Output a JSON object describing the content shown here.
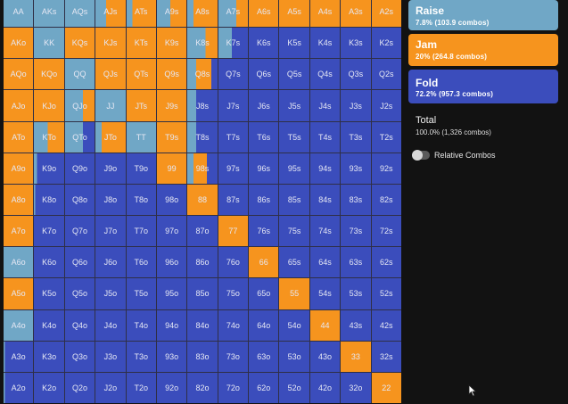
{
  "hands": [
    [
      "AA",
      "AKs",
      "AQs",
      "AJs",
      "ATs",
      "A9s",
      "A8s",
      "A7s",
      "A6s",
      "A5s",
      "A4s",
      "A3s",
      "A2s"
    ],
    [
      "AKo",
      "KK",
      "KQs",
      "KJs",
      "KTs",
      "K9s",
      "K8s",
      "K7s",
      "K6s",
      "K5s",
      "K4s",
      "K3s",
      "K2s"
    ],
    [
      "AQo",
      "KQo",
      "QQ",
      "QJs",
      "QTs",
      "Q9s",
      "Q8s",
      "Q7s",
      "Q6s",
      "Q5s",
      "Q4s",
      "Q3s",
      "Q2s"
    ],
    [
      "AJo",
      "KJo",
      "QJo",
      "JJ",
      "JTs",
      "J9s",
      "J8s",
      "J7s",
      "J6s",
      "J5s",
      "J4s",
      "J3s",
      "J2s"
    ],
    [
      "ATo",
      "KTo",
      "QTo",
      "JTo",
      "TT",
      "T9s",
      "T8s",
      "T7s",
      "T6s",
      "T5s",
      "T4s",
      "T3s",
      "T2s"
    ],
    [
      "A9o",
      "K9o",
      "Q9o",
      "J9o",
      "T9o",
      "99",
      "98s",
      "97s",
      "96s",
      "95s",
      "94s",
      "93s",
      "92s"
    ],
    [
      "A8o",
      "K8o",
      "Q8o",
      "J8o",
      "T8o",
      "98o",
      "88",
      "87s",
      "86s",
      "85s",
      "84s",
      "83s",
      "82s"
    ],
    [
      "A7o",
      "K7o",
      "Q7o",
      "J7o",
      "T7o",
      "97o",
      "87o",
      "77",
      "76s",
      "75s",
      "74s",
      "73s",
      "72s"
    ],
    [
      "A6o",
      "K6o",
      "Q6o",
      "J6o",
      "T6o",
      "96o",
      "86o",
      "76o",
      "66",
      "65s",
      "64s",
      "63s",
      "62s"
    ],
    [
      "A5o",
      "K5o",
      "Q5o",
      "J5o",
      "T5o",
      "95o",
      "85o",
      "75o",
      "65o",
      "55",
      "54s",
      "53s",
      "52s"
    ],
    [
      "A4o",
      "K4o",
      "Q4o",
      "J4o",
      "T4o",
      "94o",
      "84o",
      "74o",
      "64o",
      "54o",
      "44",
      "43s",
      "42s"
    ],
    [
      "A3o",
      "K3o",
      "Q3o",
      "J3o",
      "T3o",
      "93o",
      "83o",
      "73o",
      "63o",
      "53o",
      "43o",
      "33",
      "32s"
    ],
    [
      "A2o",
      "K2o",
      "Q2o",
      "J2o",
      "T2o",
      "92o",
      "82o",
      "72o",
      "62o",
      "52o",
      "42o",
      "32o",
      "22"
    ]
  ],
  "colors": {
    "raise": "#70a7c6",
    "jam": "#f6941e",
    "fold": "#3b4dbc"
  },
  "strategy": {
    "AA": {
      "raise": 1.0
    },
    "AKs": {
      "raise": 1.0
    },
    "AQs": {
      "raise": 1.0
    },
    "AJs": {
      "raise": 0.35,
      "jam": 0.65
    },
    "ATs": {
      "raise": 0.2,
      "jam": 0.8
    },
    "A9s": {
      "raise": 0.45,
      "jam": 0.55
    },
    "A8s": {
      "raise": 0.2,
      "jam": 0.8
    },
    "A7s": {
      "raise": 0.6,
      "jam": 0.4
    },
    "A6s": {
      "jam": 1.0
    },
    "A5s": {
      "jam": 1.0
    },
    "A4s": {
      "jam": 1.0
    },
    "A3s": {
      "jam": 1.0
    },
    "A2s": {
      "jam": 1.0
    },
    "AKo": {
      "jam": 1.0
    },
    "KK": {
      "raise": 1.0
    },
    "KQs": {
      "jam": 1.0
    },
    "KJs": {
      "jam": 1.0
    },
    "KTs": {
      "jam": 1.0
    },
    "K9s": {
      "jam": 1.0
    },
    "K8s": {
      "raise": 0.6,
      "jam": 0.4
    },
    "K7s": {
      "raise": 0.45,
      "fold": 0.55
    },
    "AQo": {
      "jam": 1.0
    },
    "KQo": {
      "jam": 1.0
    },
    "QQ": {
      "raise": 1.0
    },
    "QJs": {
      "jam": 1.0
    },
    "QTs": {
      "jam": 1.0
    },
    "Q9s": {
      "jam": 1.0
    },
    "Q8s": {
      "raise": 0.3,
      "jam": 0.5,
      "fold": 0.2
    },
    "AJo": {
      "jam": 1.0
    },
    "KJo": {
      "jam": 1.0
    },
    "QJo": {
      "raise": 0.6,
      "jam": 0.4
    },
    "JJ": {
      "raise": 1.0
    },
    "JTs": {
      "jam": 1.0
    },
    "J9s": {
      "jam": 1.0
    },
    "J8s": {
      "raise": 0.3,
      "fold": 0.7
    },
    "ATo": {
      "jam": 1.0
    },
    "KTo": {
      "raise": 0.45,
      "jam": 0.55
    },
    "QTo": {
      "raise": 0.6,
      "fold": 0.4
    },
    "JTo": {
      "raise": 0.2,
      "jam": 0.8
    },
    "TT": {
      "raise": 1.0
    },
    "T9s": {
      "jam": 1.0
    },
    "T8s": {
      "raise": 0.3,
      "fold": 0.7
    },
    "A9o": {
      "jam": 1.0
    },
    "99": {
      "jam": 1.0
    },
    "98s": {
      "raise": 0.2,
      "jam": 0.45,
      "fold": 0.35
    },
    "A8o": {
      "jam": 1.0
    },
    "88": {
      "jam": 1.0
    },
    "A7o": {
      "jam": 1.0
    },
    "77": {
      "jam": 1.0
    },
    "A6o": {
      "raise": 1.0
    },
    "66": {
      "jam": 1.0
    },
    "A5o": {
      "jam": 1.0
    },
    "55": {
      "jam": 1.0
    },
    "A4o": {
      "raise": 1.0
    },
    "44": {
      "jam": 1.0
    },
    "33": {
      "jam": 1.0
    },
    "22": {
      "jam": 1.0
    },
    "K9o": {
      "raise": 0.1,
      "fold": 0.9
    },
    "K8o": {
      "raise": 0.05,
      "fold": 0.95
    },
    "A3o": {
      "raise": 0.05,
      "fold": 0.95
    },
    "A2o": {
      "raise": 0.05,
      "fold": 0.95
    }
  },
  "legend": {
    "raise": {
      "title": "Raise",
      "sub": "7.8% (103.9 combos)"
    },
    "jam": {
      "title": "Jam",
      "sub": "20% (264.8 combos)"
    },
    "fold": {
      "title": "Fold",
      "sub": "72.2% (957.3 combos)"
    }
  },
  "total": {
    "title": "Total",
    "sub": "100.0% (1,326 combos)"
  },
  "relative_combos": {
    "label": "Relative Combos",
    "enabled": false
  }
}
